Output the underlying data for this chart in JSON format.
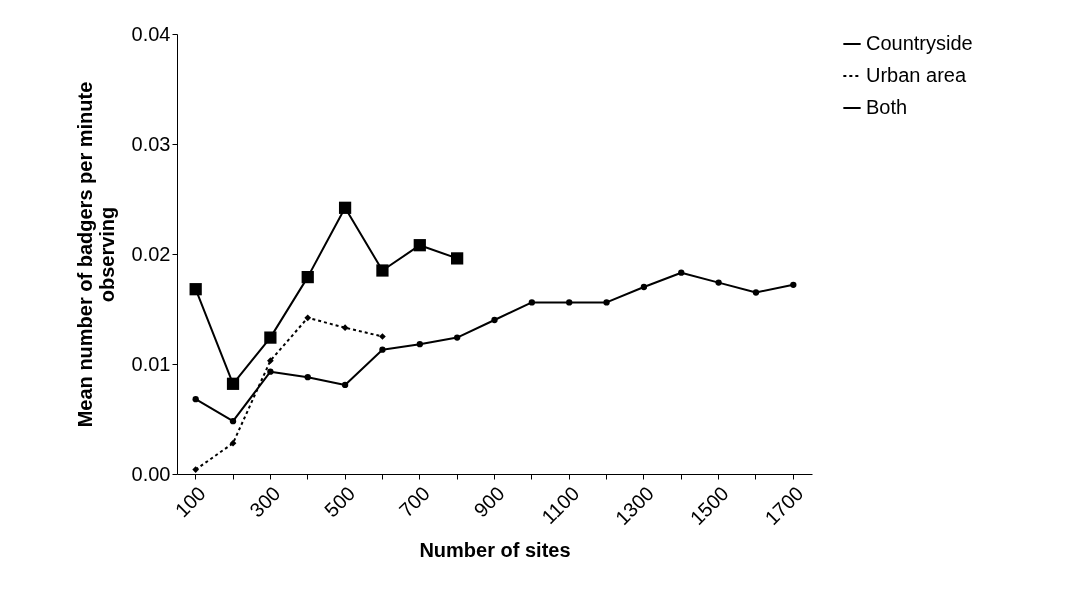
{
  "chart_data": {
    "type": "line",
    "xlabel": "Number of sites",
    "ylabel": "Mean number of badgers per minute\nobserving",
    "categories": [
      "100",
      null,
      "300",
      null,
      "500",
      null,
      "700",
      null,
      "900",
      null,
      "1100",
      null,
      "1300",
      null,
      "1500",
      null,
      "1700"
    ],
    "series": [
      {
        "name": "Countryside",
        "color": "#000000",
        "marker": "square",
        "line_style": "solid",
        "values": [
          0.0168,
          0.0082,
          0.0124,
          0.0179,
          0.0242,
          0.0185,
          0.0208,
          0.0196,
          null,
          null,
          null,
          null,
          null,
          null,
          null,
          null,
          null
        ]
      },
      {
        "name": "Urban area",
        "color": "#000000",
        "marker": "diamond",
        "line_style": "dashed",
        "values": [
          0.0004,
          0.0028,
          0.0103,
          0.0142,
          0.0133,
          0.0125,
          null,
          null,
          null,
          null,
          null,
          null,
          null,
          null,
          null,
          null,
          null
        ]
      },
      {
        "name": "Both",
        "color": "#000000",
        "marker": "circle",
        "line_style": "solid",
        "values": [
          0.0068,
          0.0048,
          0.0093,
          0.0088,
          0.0081,
          0.0113,
          0.0118,
          0.0124,
          0.014,
          0.0156,
          0.0156,
          0.0156,
          0.017,
          0.0183,
          0.0174,
          0.0165,
          0.0172
        ]
      }
    ],
    "ylim": [
      0,
      0.04
    ],
    "yticks": [
      {
        "value": 0,
        "label": "0.00"
      },
      {
        "value": 0.01,
        "label": "0.01"
      },
      {
        "value": 0.02,
        "label": "0.02"
      },
      {
        "value": 0.03,
        "label": "0.03"
      },
      {
        "value": 0.04,
        "label": "0.04"
      }
    ],
    "grid": false,
    "legend": "right"
  }
}
